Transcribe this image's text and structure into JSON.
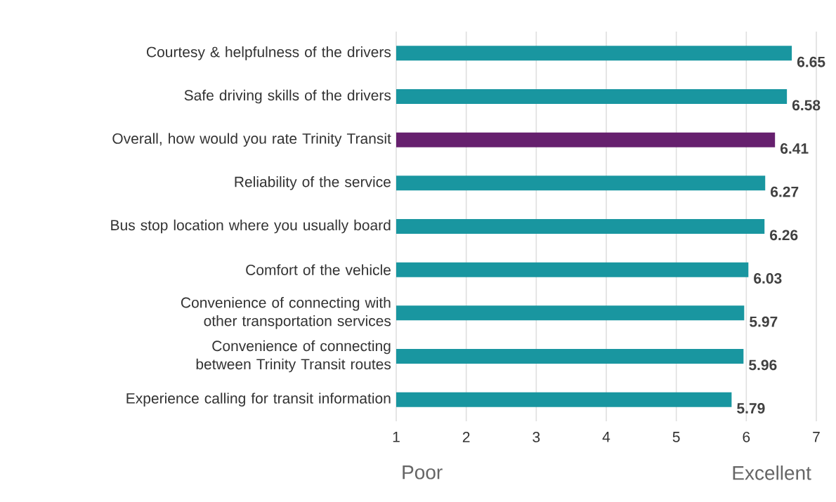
{
  "chart_data": {
    "type": "bar",
    "orientation": "horizontal",
    "categories": [
      "Courtesy & helpfulness of the drivers",
      "Safe driving skills of the drivers",
      "Overall, how would you rate Trinity Transit",
      "Reliability of the service",
      "Bus stop location where you usually board",
      "Comfort of the vehicle",
      "Convenience of connecting with other transportation services",
      "Convenience of connecting between Trinity Transit routes",
      "Experience calling for transit information"
    ],
    "values": [
      6.65,
      6.58,
      6.41,
      6.27,
      6.26,
      6.03,
      5.97,
      5.96,
      5.79
    ],
    "colors": [
      "#1996a0",
      "#1996a0",
      "#66206e",
      "#1996a0",
      "#1996a0",
      "#1996a0",
      "#1996a0",
      "#1996a0",
      "#1996a0"
    ],
    "data_labels": true,
    "xlim": [
      1,
      7
    ],
    "xticks": [
      1,
      2,
      3,
      4,
      5,
      6,
      7
    ],
    "grid": "x",
    "annotations": [
      "Poor",
      "Excellent"
    ]
  }
}
